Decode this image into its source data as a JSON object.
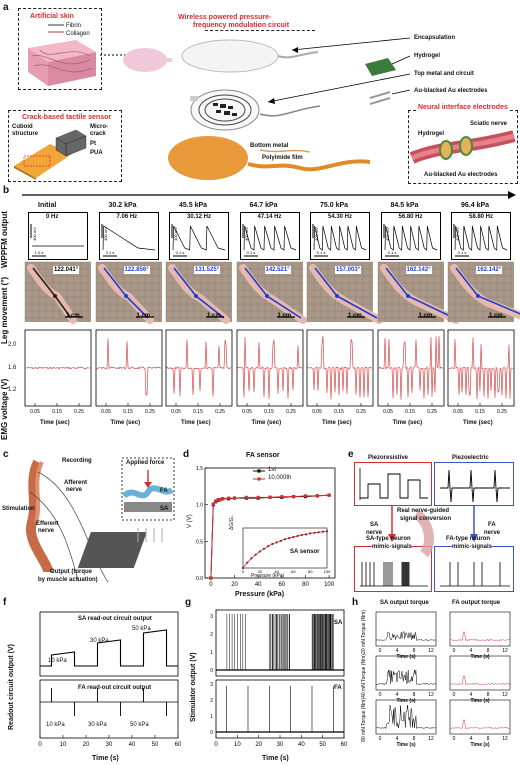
{
  "panel_a": {
    "label": "a",
    "artificial_skin": {
      "title": "Artificial skin",
      "legend": [
        "Fibrin",
        "Collagen"
      ]
    },
    "crack_sensor": {
      "title": "Crack-based tactile sensor",
      "labels": [
        "Cuboid",
        "structure",
        "Micro-",
        "crack",
        "Pt",
        "PUA"
      ]
    },
    "circuit_title": "Wireless powered pressure-\nfrequency modulation circuit",
    "right_labels": [
      "Encapsulation",
      "Hydrogel",
      "Top metal and circuit",
      "Au-blacked Au electrodes"
    ],
    "bottom_labels": [
      "Bottom metal",
      "Polyimide film"
    ],
    "neural": {
      "title": "Neural interface electrodes",
      "labels": [
        "Hydrogel",
        "Sciatic nerve",
        "Au-blacked Au electrodes"
      ]
    }
  },
  "panel_b": {
    "label": "b",
    "columns": [
      "Initial",
      "30.2 kPa",
      "45.5 kPa",
      "64.7 kPa",
      "75.0 kPa",
      "84.5 kPa",
      "96.4 kPa"
    ],
    "freqs": [
      "0 Hz",
      "7.06 Hz",
      "30.12 Hz",
      "47.14 Hz",
      "54.30 Hz",
      "56.80 Hz",
      "58.80 Hz"
    ],
    "angles": [
      "122.041°",
      "122.856°",
      "131.525°",
      "142.521°",
      "157.003°",
      "162.142°",
      "162.142°"
    ],
    "row_labels": [
      "WPPFM output",
      "Leg movement (°)",
      "EMG voltage (V)"
    ],
    "emg_ticks": [
      "2.0",
      "1.6",
      "1.2"
    ],
    "x_ticks": [
      "0.05",
      "0.15",
      "0.25"
    ],
    "x_label": "Time (sec)",
    "scale_cm": "1 cm",
    "wppfm_scale": [
      "400 mV",
      "0.1 s",
      "1.0 s"
    ],
    "peak_counts": [
      0,
      1,
      3,
      5,
      6,
      6,
      6
    ],
    "emg_spikes": [
      0,
      3,
      9,
      12,
      14,
      15,
      16
    ]
  },
  "panel_c": {
    "label": "c",
    "labels": [
      "Recording",
      "Afferent",
      "nerve",
      "Stimulation",
      "Efferent",
      "nerve",
      "Output (torque",
      "by muscle actuation)",
      "Applied force",
      "FA",
      "SA"
    ]
  },
  "panel_d": {
    "label": "d",
    "chart_data": {
      "type": "line",
      "title": "FA sensor",
      "xlabel": "Pressure (kPa)",
      "ylabel": "V (V)",
      "xlim": [
        -5,
        105
      ],
      "ylim": [
        0,
        1.5
      ],
      "x_ticks": [
        "0",
        "20",
        "40",
        "60",
        "80",
        "100"
      ],
      "y_ticks": [
        "0.0",
        "0.5",
        "1.0",
        "1.5"
      ],
      "series": [
        {
          "name": "1st",
          "color": "#111111",
          "x": [
            0,
            2,
            4,
            6,
            8,
            10,
            15,
            20,
            30,
            40,
            50,
            60,
            70,
            80,
            90,
            100
          ],
          "y": [
            0.0,
            1.0,
            1.04,
            1.06,
            1.07,
            1.08,
            1.08,
            1.09,
            1.09,
            1.09,
            1.1,
            1.1,
            1.11,
            1.11,
            1.12,
            1.13
          ]
        },
        {
          "name": "10,000th",
          "color": "#d32f2f",
          "x": [
            0,
            2,
            4,
            6,
            8,
            10,
            15,
            20,
            30,
            40,
            50,
            60,
            70,
            80,
            90,
            100
          ],
          "y": [
            0.0,
            1.01,
            1.05,
            1.07,
            1.07,
            1.08,
            1.09,
            1.09,
            1.1,
            1.1,
            1.1,
            1.11,
            1.11,
            1.12,
            1.12,
            1.13
          ]
        }
      ],
      "legend": [
        "1st",
        "10,000th"
      ],
      "inset": {
        "title": "SA sensor",
        "xlabel": "Pressure (kPa)",
        "ylabel": "ΔG/G₀",
        "x_ticks": [
          "0",
          "20",
          "40",
          "60",
          "80",
          "100"
        ],
        "x": [
          0,
          5,
          10,
          15,
          20,
          25,
          30,
          35,
          40,
          45,
          50,
          55,
          60,
          65,
          70,
          75,
          80,
          85,
          90,
          95,
          100
        ],
        "y": [
          0,
          0.1,
          0.18,
          0.25,
          0.31,
          0.36,
          0.41,
          0.45,
          0.48,
          0.51,
          0.54,
          0.56,
          0.58,
          0.6,
          0.62,
          0.63,
          0.65,
          0.66,
          0.67,
          0.68,
          0.69
        ]
      }
    }
  },
  "panel_e": {
    "label": "e",
    "labels": [
      "Piezoresistive",
      "Piezoelectric",
      "Real nerve-guided",
      "signal conversion",
      "SA",
      "nerve",
      "FA",
      "nerve",
      "SA-type neuron",
      "mimic-signals",
      "FA-type neuron",
      "mimic-signals"
    ]
  },
  "panel_f": {
    "label": "f",
    "chart_data": {
      "type": "line",
      "ylabel": "Readout circuit output (V)",
      "xlabel": "Time (s)",
      "x_ticks": [
        "0",
        "10",
        "20",
        "30",
        "40",
        "50",
        "60"
      ],
      "xlim": [
        0,
        60
      ],
      "top": {
        "title": "SA read-out circuit output",
        "annotations": [
          "10 kPa",
          "30 kPa",
          "50 kPa"
        ],
        "steps": [
          {
            "start": 5,
            "end": 15,
            "level": 0.35
          },
          {
            "start": 25,
            "end": 35,
            "level": 0.65
          },
          {
            "start": 45,
            "end": 55,
            "level": 0.9
          }
        ]
      },
      "bottom": {
        "title": "FA read-out circuit output",
        "annotations": [
          "10 kPa",
          "30 kPa",
          "50 kPa"
        ],
        "pulses": [
          5,
          15,
          25,
          35,
          45,
          55
        ]
      }
    }
  },
  "panel_g": {
    "label": "g",
    "chart_data": {
      "type": "line",
      "ylabel": "Stimulator output (V)",
      "xlabel": "Time (s)",
      "x_ticks": [
        "0",
        "10",
        "20",
        "30",
        "40",
        "50",
        "60"
      ],
      "y_ticks": [
        "0",
        "1",
        "2",
        "3"
      ],
      "xlim": [
        0,
        60
      ],
      "top": {
        "title": "SA",
        "bursts": [
          [
            5,
            15,
            2
          ],
          [
            25,
            35,
            5
          ],
          [
            45,
            55,
            9
          ]
        ]
      },
      "bottom": {
        "title": "FA",
        "pulses": [
          5,
          15,
          25,
          35,
          45,
          55
        ]
      }
    }
  },
  "panel_h": {
    "label": "h",
    "titles": [
      "SA output torque",
      "FA output torque"
    ],
    "rows": [
      "20 mN",
      "40 mN",
      "80 mN"
    ],
    "ylabel": "Torque (Nm)",
    "xlabel": "Time (s)",
    "x_ticks": [
      "0",
      "4",
      "8",
      "12"
    ],
    "sa_intensity": [
      0.35,
      0.6,
      1.0
    ]
  }
}
